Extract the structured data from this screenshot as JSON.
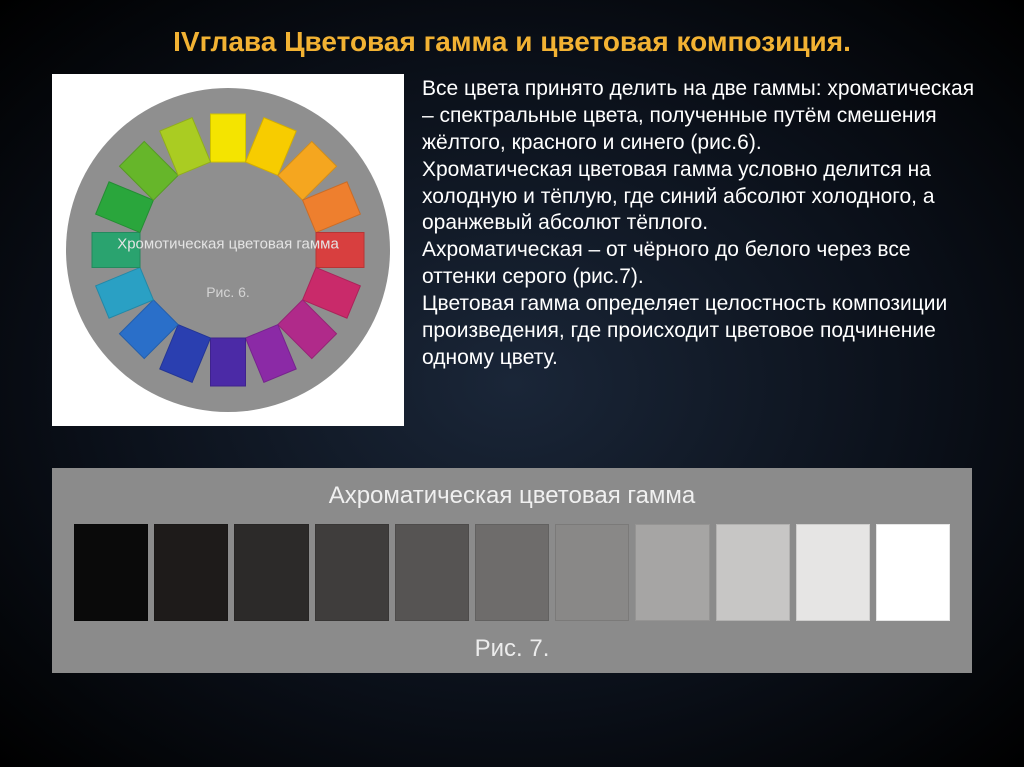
{
  "title": "IVглава Цветовая гамма и цветовая композиция.",
  "title_color": "#f2b233",
  "bodyText": "Все цвета принято делить на две гаммы: хроматическая – спектральные цвета, полученные путём смешения жёлтого, красного и синего (рис.6).\nХроматическая цветовая гамма условно делится на холодную и тёплую, где синий абсолют холодного, а оранжевый абсолют тёплого.\nАхроматическая – от чёрного до белого через все оттенки серого (рис.7).\nЦветовая гамма определяет целостность композиции произведения, где происходит цветовое подчинение одному цвету.",
  "body_color": "#ffffff",
  "body_fontsize": 21,
  "chromatic": {
    "panel_bg": "#ffffff",
    "disc_bg": "#8f8f8f",
    "centerLabel": "Хромотическая цветовая гамма",
    "figLabel": "Рис. 6.",
    "label_color": "#e4e4e4",
    "swatch_radius": 112,
    "colors": [
      "#f4e400",
      "#f7cc00",
      "#f5a61f",
      "#ee7f2e",
      "#d83f3f",
      "#c92a6a",
      "#b02a8a",
      "#8b2aa6",
      "#4b2aa6",
      "#2a3fb0",
      "#2a6fc9",
      "#2aa0c4",
      "#2aa36f",
      "#2aa63c",
      "#66b62a",
      "#aacc22"
    ]
  },
  "achromatic": {
    "panel_bg": "#8b8b8b",
    "title": "Ахроматическая цветовая гамма",
    "title_color": "#f0f0f0",
    "figLabel": "Рис. 7.",
    "colors": [
      "#0a0a0a",
      "#1e1b1a",
      "#2c2a29",
      "#3f3d3c",
      "#565453",
      "#6e6c6b",
      "#898887",
      "#a6a5a4",
      "#c7c6c5",
      "#e6e5e4",
      "#ffffff"
    ]
  }
}
